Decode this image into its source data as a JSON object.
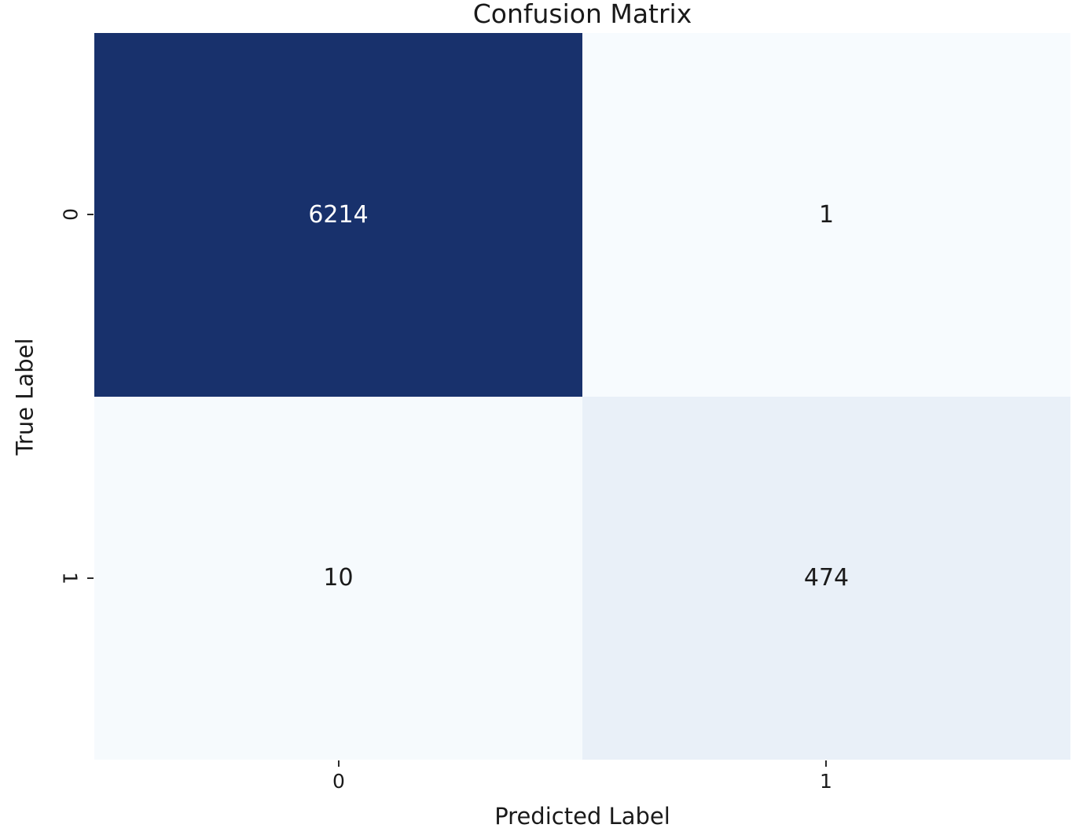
{
  "chart_data": {
    "type": "heatmap",
    "title": "Confusion Matrix",
    "xlabel": "Predicted Label",
    "ylabel": "True Label",
    "x_tick_labels": [
      "0",
      "1"
    ],
    "y_tick_labels": [
      "0",
      "1"
    ],
    "matrix": [
      [
        6214,
        1
      ],
      [
        10,
        474
      ]
    ],
    "colormap": "Blues",
    "legend": "none",
    "grid": false,
    "colorbar": false,
    "rows": [
      {
        "true_label": "0",
        "cells": [
          {
            "value": "6214",
            "bg": "#18316c",
            "text_color": "#ffffff"
          },
          {
            "value": "1",
            "bg": "#f7fbfe",
            "text_color": "#1a1a1a"
          }
        ]
      },
      {
        "true_label": "1",
        "cells": [
          {
            "value": "10",
            "bg": "#f6fafd",
            "text_color": "#1a1a1a"
          },
          {
            "value": "474",
            "bg": "#e9f0f8",
            "text_color": "#1a1a1a"
          }
        ]
      }
    ],
    "colors": {
      "background": "#ffffff",
      "max_cell": "#18316c",
      "min_cell": "#f7fbfe",
      "text": "#1a1a1a"
    }
  }
}
